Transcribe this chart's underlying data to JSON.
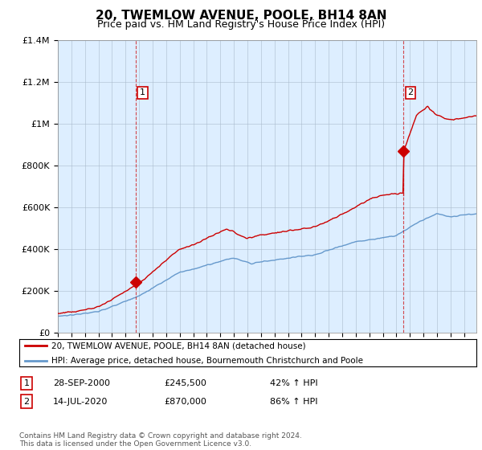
{
  "title": "20, TWEMLOW AVENUE, POOLE, BH14 8AN",
  "subtitle": "Price paid vs. HM Land Registry's House Price Index (HPI)",
  "title_fontsize": 11,
  "subtitle_fontsize": 9,
  "ylim": [
    0,
    1400000
  ],
  "yticks": [
    0,
    200000,
    400000,
    600000,
    800000,
    1000000,
    1200000,
    1400000
  ],
  "ytick_labels": [
    "£0",
    "£200K",
    "£400K",
    "£600K",
    "£800K",
    "£1M",
    "£1.2M",
    "£1.4M"
  ],
  "hpi_color": "#6699cc",
  "price_color": "#cc0000",
  "sale1_year": 2000.75,
  "sale1_price": 245500,
  "sale2_year": 2020.54,
  "sale2_price": 870000,
  "chart_bg_color": "#ddeeff",
  "legend_line1": "20, TWEMLOW AVENUE, POOLE, BH14 8AN (detached house)",
  "legend_line2": "HPI: Average price, detached house, Bournemouth Christchurch and Poole",
  "note1_label": "1",
  "note1_date": "28-SEP-2000",
  "note1_price": "£245,500",
  "note1_hpi": "42% ↑ HPI",
  "note2_label": "2",
  "note2_date": "14-JUL-2020",
  "note2_price": "£870,000",
  "note2_hpi": "86% ↑ HPI",
  "footnote": "Contains HM Land Registry data © Crown copyright and database right 2024.\nThis data is licensed under the Open Government Licence v3.0.",
  "background_color": "#ffffff",
  "grid_color": "#aabbcc"
}
